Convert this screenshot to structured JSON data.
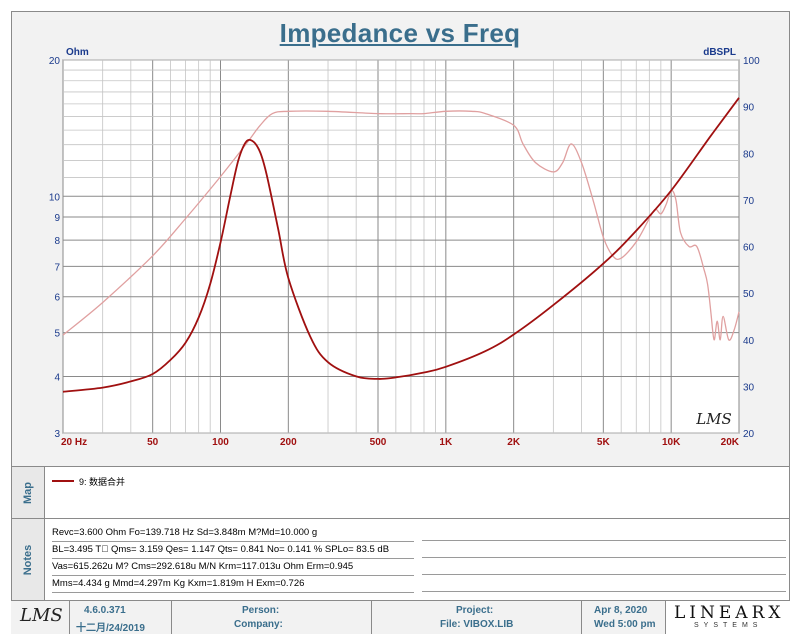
{
  "chart_data": {
    "type": "line",
    "title": "Impedance vs Freq",
    "left_axis_unit": "Ohm",
    "right_axis_unit": "dBSPL",
    "x_scale": "log",
    "xlim": [
      20,
      20000
    ],
    "y_left_scale": "log",
    "ylim_left": [
      3,
      20
    ],
    "ylim_right": [
      20,
      100
    ],
    "grid": true,
    "x_ticks": [
      {
        "v": 20,
        "label": "20  Hz"
      },
      {
        "v": 50,
        "label": "50"
      },
      {
        "v": 100,
        "label": "100"
      },
      {
        "v": 200,
        "label": "200"
      },
      {
        "v": 500,
        "label": "500"
      },
      {
        "v": 1000,
        "label": "1K"
      },
      {
        "v": 2000,
        "label": "2K"
      },
      {
        "v": 5000,
        "label": "5K"
      },
      {
        "v": 10000,
        "label": "10K"
      },
      {
        "v": 20000,
        "label": "20K"
      }
    ],
    "y_left_ticks": [
      {
        "v": 3,
        "label": "3"
      },
      {
        "v": 4,
        "label": "4"
      },
      {
        "v": 5,
        "label": "5"
      },
      {
        "v": 6,
        "label": "6"
      },
      {
        "v": 7,
        "label": "7"
      },
      {
        "v": 8,
        "label": "8"
      },
      {
        "v": 9,
        "label": "9"
      },
      {
        "v": 10,
        "label": "10"
      },
      {
        "v": 20,
        "label": "20"
      }
    ],
    "y_right_ticks": [
      {
        "v": 20,
        "label": "20"
      },
      {
        "v": 30,
        "label": "30"
      },
      {
        "v": 40,
        "label": "40"
      },
      {
        "v": 50,
        "label": "50"
      },
      {
        "v": 60,
        "label": "60"
      },
      {
        "v": 70,
        "label": "70"
      },
      {
        "v": 80,
        "label": "80"
      },
      {
        "v": 90,
        "label": "90"
      },
      {
        "v": 100,
        "label": "100"
      }
    ],
    "series": [
      {
        "name": "9: 数据合并",
        "axis": "left",
        "unit": "Ohm",
        "color": "#a01010",
        "x": [
          20,
          30,
          40,
          50,
          60,
          70,
          80,
          90,
          100,
          110,
          120,
          130,
          140,
          150,
          160,
          180,
          200,
          250,
          300,
          400,
          500,
          600,
          800,
          1000,
          1500,
          2000,
          3000,
          5000,
          7000,
          10000,
          15000,
          20000
        ],
        "y": [
          3.7,
          3.78,
          3.9,
          4.05,
          4.35,
          4.75,
          5.4,
          6.4,
          7.9,
          9.9,
          12.0,
          13.2,
          13.2,
          12.5,
          11.2,
          8.5,
          6.6,
          4.9,
          4.3,
          4.0,
          3.95,
          3.98,
          4.08,
          4.2,
          4.55,
          4.95,
          5.75,
          7.1,
          8.4,
          10.3,
          13.6,
          16.5
        ]
      },
      {
        "name": "",
        "axis": "right",
        "unit": "dBSPL",
        "color": "#e0a0a0",
        "x": [
          20,
          30,
          50,
          70,
          100,
          130,
          150,
          170,
          200,
          300,
          500,
          700,
          800,
          1000,
          1300,
          1500,
          2000,
          2200,
          2500,
          3000,
          3300,
          3600,
          4000,
          4500,
          5000,
          5500,
          6000,
          7000,
          8000,
          8500,
          9000,
          9500,
          10000,
          10500,
          11000,
          12000,
          13000,
          14000,
          14500,
          15000,
          15500,
          16000,
          16500,
          17000,
          18000,
          19000,
          20000
        ],
        "y": [
          41,
          48,
          58,
          66,
          75,
          82,
          86,
          88.5,
          89,
          89,
          88.5,
          88.5,
          88.5,
          89,
          89,
          88.5,
          86,
          82,
          78,
          76,
          78,
          82,
          78,
          70,
          62,
          58,
          57.5,
          61,
          66,
          68,
          67,
          69,
          72,
          70,
          63,
          60,
          60,
          55,
          52,
          46,
          40,
          44,
          40,
          45,
          40,
          42,
          46
        ]
      }
    ]
  },
  "watermark": "LMS",
  "map": {
    "label": "Map",
    "legend_text": "9: 数据合并"
  },
  "notes": {
    "label": "Notes",
    "lines": [
      "Revc=3.600 Ohm  Fo=139.718 Hz  Sd=3.848m M?Md=10.000 g",
      "BL=3.495 T\u0000  Qms= 3.159  Qes= 1.147  Qts= 0.841  No= 0.141 %  SPLo= 83.5 dB",
      "Vas=615.262u M?  Cms=292.618u M/N  Krm=117.013u Ohm  Erm=0.945",
      "Mms=4.434 g  Mmd=4.297m Kg  Kxm=1.819m H  Exm=0.726"
    ]
  },
  "footer": {
    "logo": "LMS",
    "version": "4.6.0.371",
    "build_date": "十二月/24/2019",
    "person_label": "Person:",
    "company_label": "Company:",
    "project_label": "Project:",
    "file_label": "File: VIBOX.LIB",
    "date": "Apr  8, 2020",
    "time": "Wed  5:00 pm",
    "brand_top": "LINEARX",
    "brand_bottom": "SYSTEMS"
  },
  "colors": {
    "title": "#3a6e8c",
    "impedance_curve": "#a01010",
    "spl_curve": "#e0a0a0",
    "grid": "#9a9a9a",
    "axis_labels": "#1a3a8c",
    "x_labels": "#a01010"
  }
}
